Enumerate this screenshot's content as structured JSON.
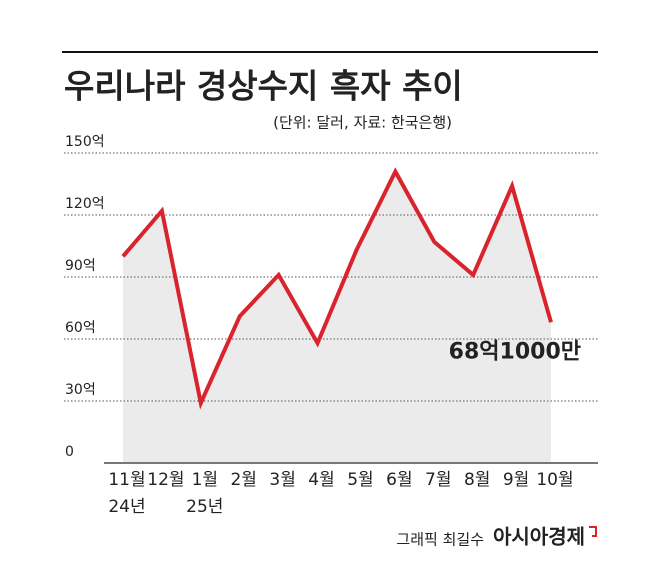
{
  "chart_data": {
    "type": "line",
    "title": "우리나라 경상수지 흑자 추이",
    "subtitle": "(단위: 달러, 자료: 한국은행)",
    "categories": [
      "11월",
      "12월",
      "1월",
      "2월",
      "3월",
      "4월",
      "5월",
      "6월",
      "7월",
      "8월",
      "9월",
      "10월"
    ],
    "x_sublabels": [
      "24년",
      null,
      "25년",
      null,
      null,
      null,
      null,
      null,
      null,
      null,
      null,
      null
    ],
    "values": [
      100,
      122,
      29,
      71,
      91,
      58,
      103,
      141,
      107,
      91,
      134,
      68.1
    ],
    "value_labels": [
      null,
      null,
      null,
      null,
      null,
      null,
      null,
      null,
      null,
      null,
      null,
      "68억1000만"
    ],
    "color": "#d9232d",
    "area_color": "#ebebeb",
    "ylim": [
      0,
      150
    ],
    "yticks": [
      0,
      {
        "value": 30,
        "label": "30억"
      },
      {
        "value": 60,
        "label": "60억"
      },
      {
        "value": 90,
        "label": "90억"
      },
      {
        "value": 120,
        "label": "120억"
      },
      {
        "value": 150,
        "label": "150억"
      }
    ],
    "grid": true,
    "credit": "그래픽 최길수",
    "brand": "아시아경제"
  }
}
